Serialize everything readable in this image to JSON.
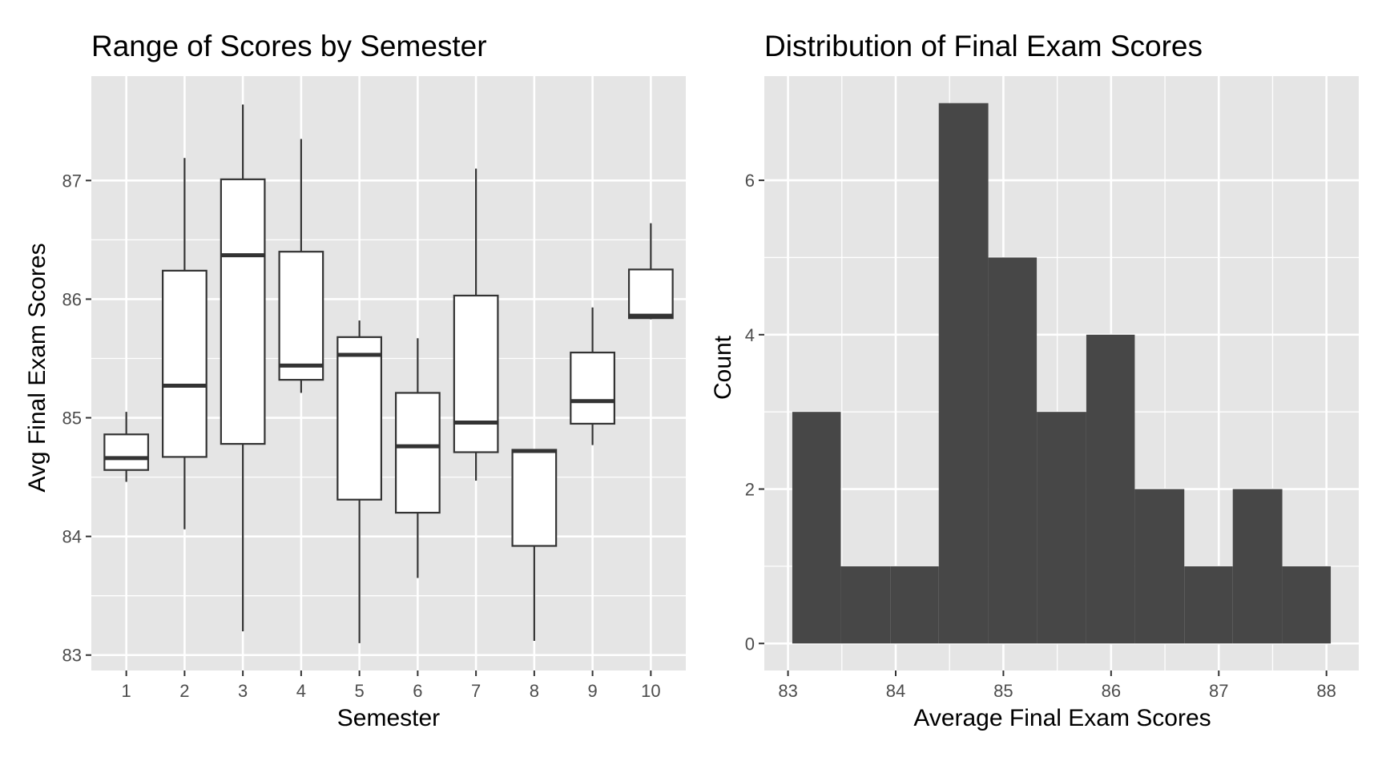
{
  "chart_data": [
    {
      "type": "boxplot",
      "title": "Range of Scores by Semester",
      "xlabel": "Semester",
      "ylabel": "Avg Final Exam Scores",
      "x_tick_labels": [
        "1",
        "2",
        "3",
        "4",
        "5",
        "6",
        "7",
        "8",
        "9",
        "10"
      ],
      "y_ticks": [
        83,
        84,
        85,
        86,
        87
      ],
      "y_tick_labels": [
        "83",
        "84",
        "85",
        "86",
        "87"
      ],
      "ylim": [
        82.87,
        87.88
      ],
      "grid": true,
      "boxes": [
        {
          "semester": "1",
          "min": 84.46,
          "q1": 84.56,
          "median": 84.66,
          "q3": 84.86,
          "max": 85.05
        },
        {
          "semester": "2",
          "min": 84.06,
          "q1": 84.67,
          "median": 85.27,
          "q3": 86.24,
          "max": 87.19
        },
        {
          "semester": "3",
          "min": 83.2,
          "q1": 84.78,
          "median": 86.37,
          "q3": 87.01,
          "max": 87.64
        },
        {
          "semester": "4",
          "min": 85.21,
          "q1": 85.32,
          "median": 85.44,
          "q3": 86.4,
          "max": 87.35
        },
        {
          "semester": "5",
          "min": 83.1,
          "q1": 84.31,
          "median": 85.53,
          "q3": 85.68,
          "max": 85.82
        },
        {
          "semester": "6",
          "min": 83.65,
          "q1": 84.2,
          "median": 84.76,
          "q3": 85.21,
          "max": 85.67
        },
        {
          "semester": "7",
          "min": 84.47,
          "q1": 84.71,
          "median": 84.96,
          "q3": 86.03,
          "max": 87.1
        },
        {
          "semester": "8",
          "min": 83.12,
          "q1": 83.92,
          "median": 84.72,
          "q3": 84.73,
          "max": 84.73
        },
        {
          "semester": "9",
          "min": 84.77,
          "q1": 84.95,
          "median": 85.14,
          "q3": 85.55,
          "max": 85.93
        },
        {
          "semester": "10",
          "min": 85.83,
          "q1": 85.84,
          "median": 85.86,
          "q3": 86.25,
          "max": 86.64
        }
      ]
    },
    {
      "type": "histogram",
      "title": "Distribution of Final Exam Scores",
      "xlabel": "Average Final Exam Scores",
      "ylabel": "Count",
      "x_ticks": [
        83,
        84,
        85,
        86,
        87,
        88
      ],
      "x_tick_labels": [
        "83",
        "84",
        "85",
        "86",
        "87",
        "88"
      ],
      "y_ticks": [
        0,
        2,
        4,
        6
      ],
      "y_tick_labels": [
        "0",
        "2",
        "4",
        "6"
      ],
      "xlim": [
        82.78,
        88.3
      ],
      "ylim": [
        -0.35,
        7.35
      ],
      "grid": true,
      "bar_color": "#474747",
      "bins": [
        {
          "x0": 83.04,
          "x1": 83.49,
          "count": 3
        },
        {
          "x0": 83.49,
          "x1": 83.95,
          "count": 1
        },
        {
          "x0": 83.95,
          "x1": 84.4,
          "count": 1
        },
        {
          "x0": 84.4,
          "x1": 84.86,
          "count": 7
        },
        {
          "x0": 84.86,
          "x1": 85.31,
          "count": 5
        },
        {
          "x0": 85.31,
          "x1": 85.77,
          "count": 3
        },
        {
          "x0": 85.77,
          "x1": 86.22,
          "count": 4
        },
        {
          "x0": 86.22,
          "x1": 86.68,
          "count": 2
        },
        {
          "x0": 86.68,
          "x1": 87.13,
          "count": 1
        },
        {
          "x0": 87.13,
          "x1": 87.59,
          "count": 2
        },
        {
          "x0": 87.59,
          "x1": 88.04,
          "count": 1
        }
      ]
    }
  ]
}
